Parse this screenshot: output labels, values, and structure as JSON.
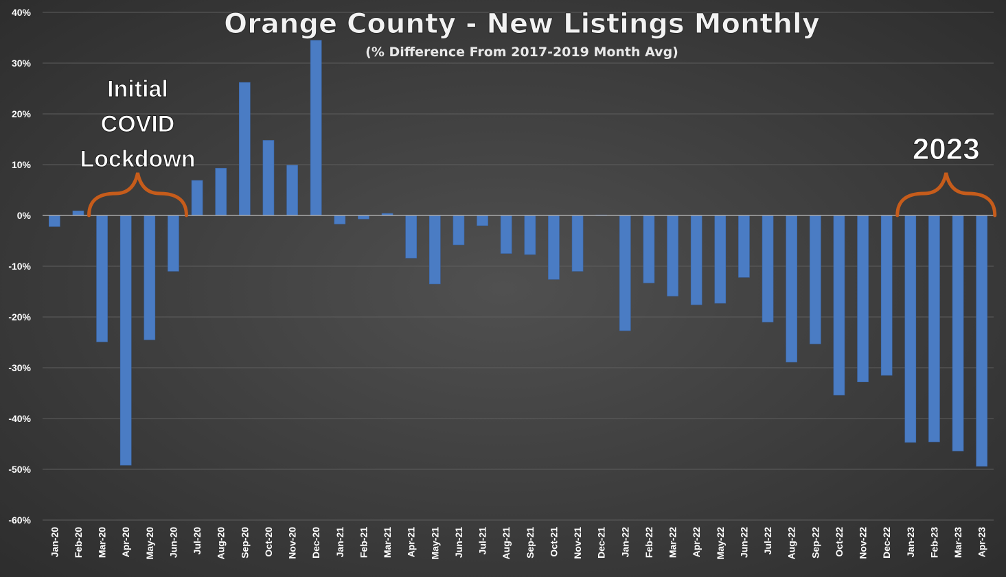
{
  "chart_data": {
    "type": "bar",
    "title": "Orange County - New Listings Monthly",
    "subtitle": "(% Difference From 2017-2019 Month Avg)",
    "xlabel": "",
    "ylabel": "",
    "ylim": [
      -60,
      40
    ],
    "yticks": [
      40,
      30,
      20,
      10,
      0,
      -10,
      -20,
      -30,
      -40,
      -50,
      -60
    ],
    "ytick_labels": [
      "40%",
      "30%",
      "20%",
      "10%",
      "0%",
      "-10%",
      "-20%",
      "-30%",
      "-40%",
      "-50%",
      "-60%"
    ],
    "grid": true,
    "categories": [
      "Jan-20",
      "Feb-20",
      "Mar-20",
      "Apr-20",
      "May-20",
      "Jun-20",
      "Jul-20",
      "Aug-20",
      "Sep-20",
      "Oct-20",
      "Nov-20",
      "Dec-20",
      "Jan-21",
      "Feb-21",
      "Mar-21",
      "Apr-21",
      "May-21",
      "Jun-21",
      "Jul-21",
      "Aug-21",
      "Sep-21",
      "Oct-21",
      "Nov-21",
      "Dec-21",
      "Jan-22",
      "Feb-22",
      "Mar-22",
      "Apr-22",
      "May-22",
      "Jun-22",
      "Jul-22",
      "Aug-22",
      "Sep-22",
      "Oct-22",
      "Nov-22",
      "Dec-22",
      "Jan-23",
      "Feb-23",
      "Mar-23",
      "Apr-23"
    ],
    "values": [
      -2.2,
      0.9,
      -24.9,
      -49.2,
      -24.5,
      -11.0,
      6.9,
      9.3,
      26.2,
      14.8,
      9.9,
      34.5,
      -1.7,
      -0.7,
      0.4,
      -8.4,
      -13.5,
      -5.8,
      -2.0,
      -7.5,
      -7.7,
      -12.6,
      -11.0,
      0.1,
      -22.7,
      -13.3,
      -15.9,
      -17.6,
      -17.3,
      -12.2,
      -21.0,
      -28.9,
      -25.3,
      -35.4,
      -32.8,
      -31.5,
      -44.7,
      -44.6,
      -46.4,
      -49.4
    ],
    "bar_color": "#4a7cc4",
    "annotations": [
      {
        "lines": [
          "Initial",
          "COVID",
          "Lockdown"
        ],
        "span": [
          "Mar-20",
          "Jun-20"
        ],
        "brace_color": "#c65c1b"
      },
      {
        "lines": [
          "2023"
        ],
        "span": [
          "Jan-23",
          "Apr-23"
        ],
        "brace_color": "#c65c1b"
      }
    ]
  }
}
